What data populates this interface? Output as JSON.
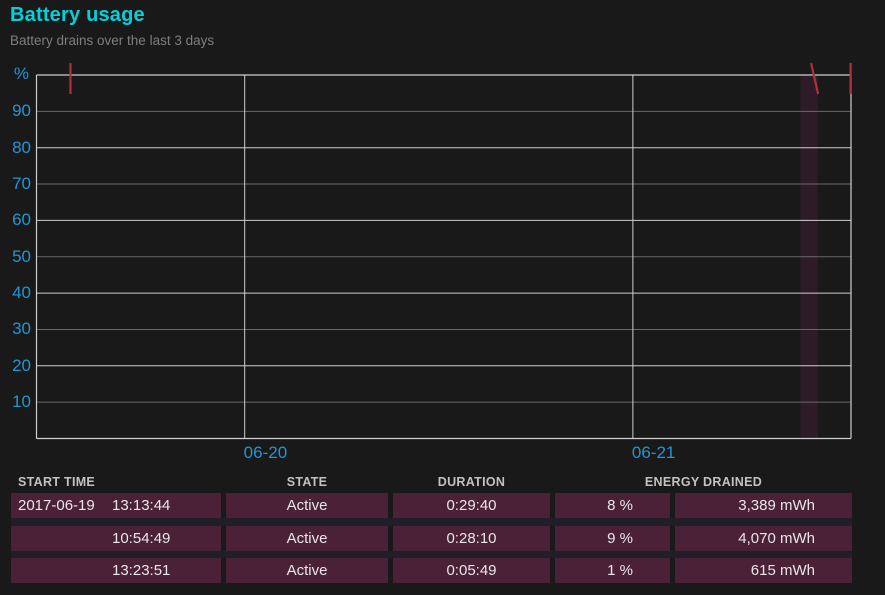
{
  "colors": {
    "page_bg": "#191919",
    "accent_title": "#00d2dc",
    "subtitle": "#7e7e7e",
    "axis_label": "#2196d6",
    "grid_major": "#cecece",
    "grid_minor": "#696969",
    "red_mark": "#ae3138",
    "band": "#2d1b28",
    "row_bg": "#4a2137",
    "row_gap": "#1f1e29",
    "header_text": "#c2c2c2",
    "cell_text": "#e9e6e9"
  },
  "chart_data": {
    "type": "timeline-grid",
    "title": "Battery usage",
    "subtitle": "Battery drains over the last 3 days",
    "ylabel": "%",
    "y_range": [
      0,
      100
    ],
    "y_ticks": [
      90,
      80,
      70,
      60,
      50,
      40,
      30,
      20,
      10
    ],
    "x_ticks": [
      {
        "label": "06-20",
        "frac": 0.2556
      },
      {
        "label": "06-21",
        "frac": 0.7322
      }
    ],
    "highlight_band": {
      "frac_start": 0.938,
      "frac_end": 0.9595
    },
    "drain_marks": [
      {
        "frac": 0.0417,
        "slanted": false
      },
      {
        "frac": 0.951,
        "slanted": true
      },
      {
        "frac": 0.9995,
        "slanted": false
      }
    ],
    "grid": true,
    "legend": false,
    "series": []
  },
  "table": {
    "headers": [
      "START TIME",
      "STATE",
      "DURATION",
      "ENERGY DRAINED"
    ],
    "rows": [
      {
        "date": "2017-06-19",
        "time": "13:13:44",
        "state": "Active",
        "duration": "0:29:40",
        "percent": "8 %",
        "energy": "3,389 mWh"
      },
      {
        "date": "",
        "time": "10:54:49",
        "state": "Active",
        "duration": "0:28:10",
        "percent": "9 %",
        "energy": "4,070 mWh"
      },
      {
        "date": "",
        "time": "13:23:51",
        "state": "Active",
        "duration": "0:05:49",
        "percent": "1 %",
        "energy": "615 mWh"
      }
    ]
  }
}
